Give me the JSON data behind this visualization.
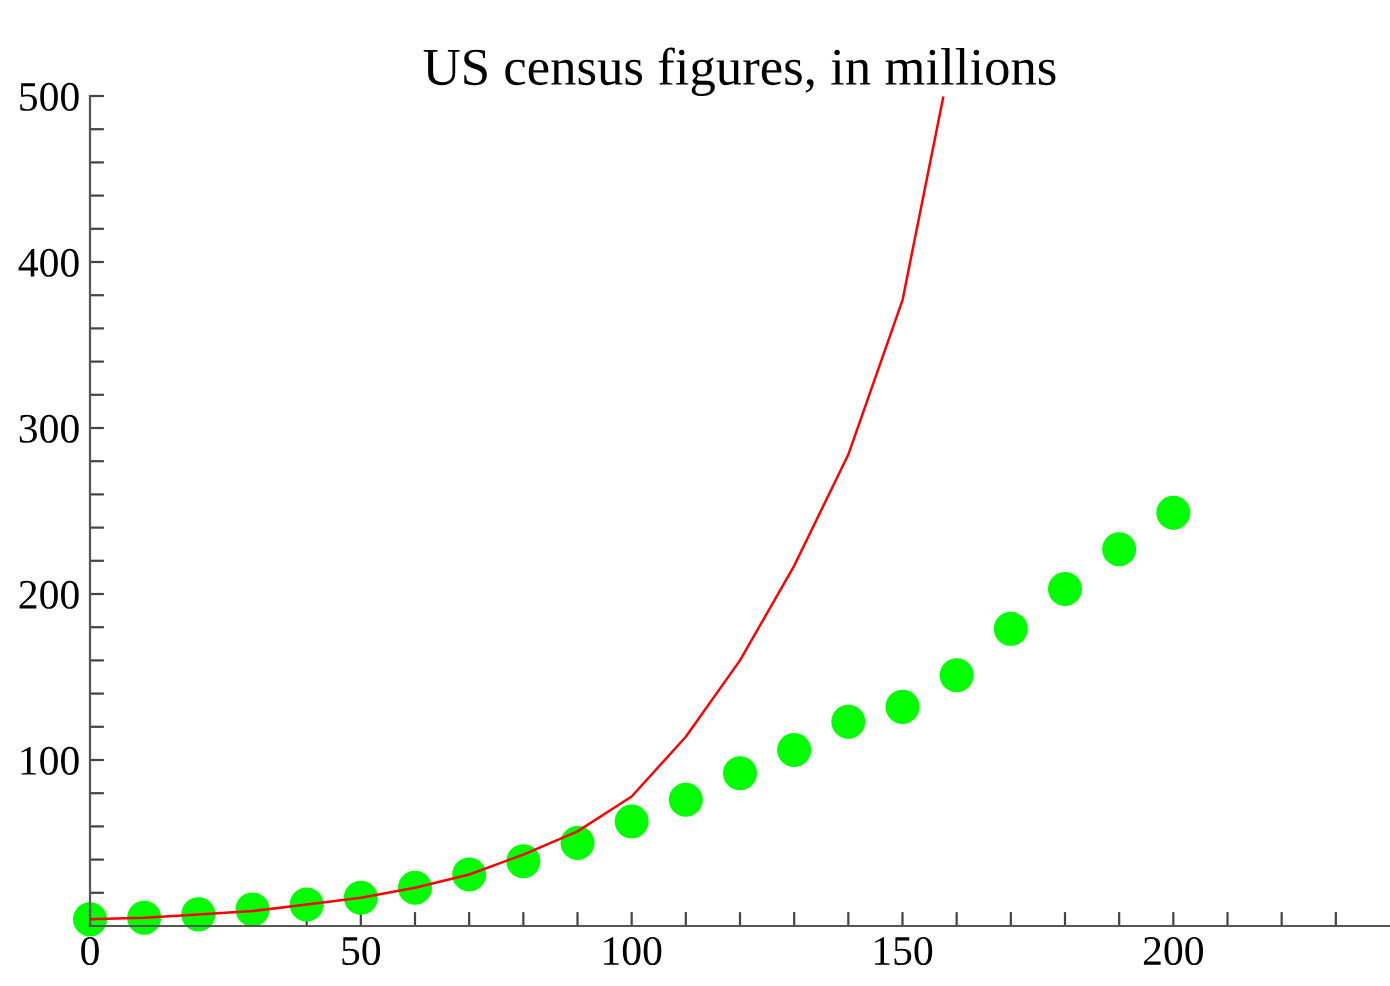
{
  "chart_data": {
    "type": "scatter",
    "title": "US census figures, in millions",
    "x": [
      0,
      10,
      20,
      30,
      40,
      50,
      60,
      70,
      80,
      90,
      100,
      110,
      120,
      130,
      140,
      150,
      160,
      170,
      180,
      190,
      200
    ],
    "series": [
      {
        "type": "scatter",
        "color": "#00ff00",
        "marker": "circle",
        "values": [
          4,
          5,
          7,
          10,
          13,
          17,
          23,
          31,
          39,
          50,
          63,
          76,
          92,
          106,
          123,
          132,
          151,
          179,
          203,
          227,
          249
        ]
      },
      {
        "type": "line",
        "color": "#ff0000",
        "line_style": "solid",
        "x": [
          0,
          10,
          20,
          30,
          40,
          50,
          60,
          70,
          80,
          90,
          100,
          110,
          120,
          130,
          140,
          150,
          157.5
        ],
        "values": [
          4,
          5,
          7,
          9,
          13,
          17,
          23,
          31,
          43,
          57,
          78,
          114,
          160,
          217,
          284,
          377,
          499
        ]
      }
    ],
    "xlim": [
      0,
      240
    ],
    "ylim": [
      0,
      500
    ],
    "xticks": [
      0,
      {
        "value": 10,
        "label": null
      },
      {
        "value": 20,
        "label": null
      },
      {
        "value": 30,
        "label": null
      },
      {
        "value": 40,
        "label": null
      },
      50,
      {
        "value": 60,
        "label": null
      },
      {
        "value": 70,
        "label": null
      },
      {
        "value": 80,
        "label": null
      },
      {
        "value": 90,
        "label": null
      },
      100,
      {
        "value": 110,
        "label": null
      },
      {
        "value": 120,
        "label": null
      },
      {
        "value": 130,
        "label": null
      },
      {
        "value": 140,
        "label": null
      },
      150,
      {
        "value": 160,
        "label": null
      },
      {
        "value": 170,
        "label": null
      },
      {
        "value": 180,
        "label": null
      },
      {
        "value": 190,
        "label": null
      },
      200,
      {
        "value": 210,
        "label": null
      },
      {
        "value": 220,
        "label": null
      },
      {
        "value": 230,
        "label": null
      }
    ],
    "yticks": [
      {
        "value": 20,
        "label": null
      },
      {
        "value": 40,
        "label": null
      },
      {
        "value": 60,
        "label": null
      },
      {
        "value": 80,
        "label": null
      },
      100,
      {
        "value": 120,
        "label": null
      },
      {
        "value": 140,
        "label": null
      },
      {
        "value": 160,
        "label": null
      },
      {
        "value": 180,
        "label": null
      },
      200,
      {
        "value": 220,
        "label": null
      },
      {
        "value": 240,
        "label": null
      },
      {
        "value": 260,
        "label": null
      },
      {
        "value": 280,
        "label": null
      },
      300,
      {
        "value": 320,
        "label": null
      },
      {
        "value": 340,
        "label": null
      },
      {
        "value": 360,
        "label": null
      },
      {
        "value": 380,
        "label": null
      },
      400,
      {
        "value": 420,
        "label": null
      },
      {
        "value": 440,
        "label": null
      },
      {
        "value": 460,
        "label": null
      },
      {
        "value": 480,
        "label": null
      },
      500
    ],
    "grid": false,
    "legend": false
  }
}
